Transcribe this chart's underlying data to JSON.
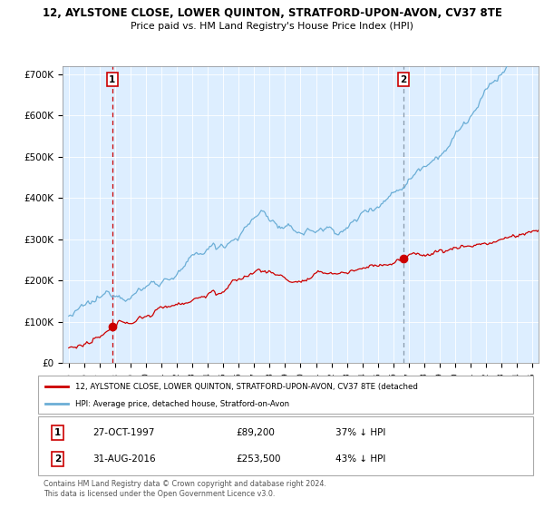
{
  "title1": "12, AYLSTONE CLOSE, LOWER QUINTON, STRATFORD-UPON-AVON, CV37 8TE",
  "title2": "Price paid vs. HM Land Registry's House Price Index (HPI)",
  "ylabel_ticks": [
    "£0",
    "£100K",
    "£200K",
    "£300K",
    "£400K",
    "£500K",
    "£600K",
    "£700K"
  ],
  "ytick_values": [
    0,
    100000,
    200000,
    300000,
    400000,
    500000,
    600000,
    700000
  ],
  "ylim": [
    0,
    720000
  ],
  "xlim_start": 1994.6,
  "xlim_end": 2025.4,
  "purchase1_date": 1997.82,
  "purchase1_price": 89200,
  "purchase2_date": 2016.66,
  "purchase2_price": 253500,
  "hpi_color": "#6baed6",
  "price_color": "#cc0000",
  "dashed1_color": "#cc0000",
  "dashed2_color": "#8899aa",
  "background_color": "#ffffff",
  "chart_bg_color": "#ddeeff",
  "grid_color": "#ffffff",
  "legend_label1": "12, AYLSTONE CLOSE, LOWER QUINTON, STRATFORD-UPON-AVON, CV37 8TE (detached",
  "legend_label2": "HPI: Average price, detached house, Stratford-on-Avon",
  "footnote1": "Contains HM Land Registry data © Crown copyright and database right 2024.",
  "footnote2": "This data is licensed under the Open Government Licence v3.0."
}
